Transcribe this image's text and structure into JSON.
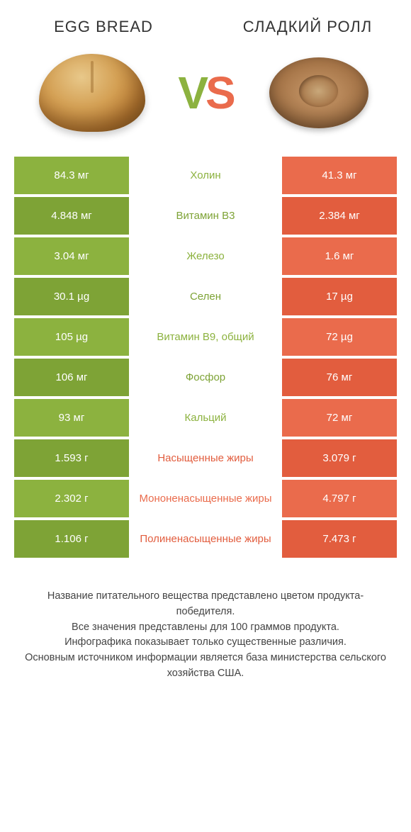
{
  "colors": {
    "green": "#8cb23f",
    "greenDark": "#7ea336",
    "orange": "#ea6b4c",
    "orangeDark": "#e25d3e",
    "white": "#ffffff"
  },
  "header": {
    "leftTitle": "EGG BREAD",
    "rightTitle": "СЛАДКИЙ РОЛЛ",
    "vs_v": "V",
    "vs_s": "S"
  },
  "rows": [
    {
      "left": "84.3 мг",
      "mid": "Холин",
      "right": "41.3 мг",
      "winner": "left",
      "alt": false
    },
    {
      "left": "4.848 мг",
      "mid": "Витамин B3",
      "right": "2.384 мг",
      "winner": "left",
      "alt": true
    },
    {
      "left": "3.04 мг",
      "mid": "Железо",
      "right": "1.6 мг",
      "winner": "left",
      "alt": false
    },
    {
      "left": "30.1 µg",
      "mid": "Селен",
      "right": "17 µg",
      "winner": "left",
      "alt": true
    },
    {
      "left": "105 µg",
      "mid": "Витамин B9, общий",
      "right": "72 µg",
      "winner": "left",
      "alt": false
    },
    {
      "left": "106 мг",
      "mid": "Фосфор",
      "right": "76 мг",
      "winner": "left",
      "alt": true
    },
    {
      "left": "93 мг",
      "mid": "Кальций",
      "right": "72 мг",
      "winner": "left",
      "alt": false
    },
    {
      "left": "1.593 г",
      "mid": "Насыщенные жиры",
      "right": "3.079 г",
      "winner": "right",
      "alt": true
    },
    {
      "left": "2.302 г",
      "mid": "Мононенасыщенные жиры",
      "right": "4.797 г",
      "winner": "right",
      "alt": false
    },
    {
      "left": "1.106 г",
      "mid": "Полиненасыщенные жиры",
      "right": "7.473 г",
      "winner": "right",
      "alt": true
    }
  ],
  "footer": {
    "line1": "Название питательного вещества представлено цветом продукта-победителя.",
    "line2": "Все значения представлены для 100 граммов продукта.",
    "line3": "Инфографика показывает только существенные различия.",
    "line4": "Основным источником информации является база министерства сельского хозяйства США."
  }
}
